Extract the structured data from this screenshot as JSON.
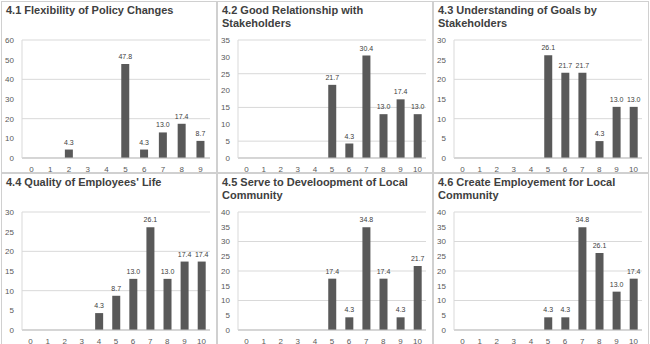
{
  "chart_data": [
    {
      "type": "bar",
      "title": "4.1 Flexibility of Policy Changes",
      "categories": [
        "0",
        "1",
        "2",
        "3",
        "4",
        "5",
        "6",
        "7",
        "8",
        "9"
      ],
      "values": [
        0,
        0,
        4.3,
        0,
        0,
        47.8,
        4.3,
        13.0,
        17.4,
        8.7
      ],
      "value_labels": [
        "0",
        "0",
        "4.3",
        "0",
        "0",
        "47.8",
        "4.3",
        "13.0",
        "17.4",
        "8.7"
      ],
      "color": "#595959",
      "ylim": [
        0,
        60
      ],
      "yticks": [
        0,
        10,
        20,
        30,
        40,
        50,
        60
      ],
      "grid": true,
      "data_labels": true
    },
    {
      "type": "bar",
      "title": "4.2 Good Relationship with Stakeholders",
      "categories": [
        "0",
        "1",
        "2",
        "3",
        "4",
        "5",
        "6",
        "7",
        "8",
        "9",
        "10"
      ],
      "values": [
        0,
        0,
        0,
        0,
        0,
        21.7,
        4.3,
        30.4,
        13.0,
        17.4,
        13.0
      ],
      "value_labels": [
        "0",
        "0",
        "0",
        "0",
        "0",
        "21.7",
        "4.3",
        "30.4",
        "13.0",
        "17.4",
        "13.0"
      ],
      "color": "#595959",
      "ylim": [
        0,
        35
      ],
      "yticks": [
        0,
        5,
        10,
        15,
        20,
        25,
        30,
        35
      ],
      "grid": true,
      "data_labels": true
    },
    {
      "type": "bar",
      "title": "4.3 Understanding of Goals by Stakeholders",
      "categories": [
        "0",
        "1",
        "2",
        "3",
        "4",
        "5",
        "6",
        "7",
        "8",
        "9",
        "10"
      ],
      "values": [
        0,
        0,
        0,
        0,
        0,
        26.1,
        21.7,
        21.7,
        4.3,
        13.0,
        13.0
      ],
      "value_labels": [
        "0",
        "0",
        "0",
        "0",
        "0",
        "26.1",
        "21.7",
        "21.7",
        "4.3",
        "13.0",
        "13.0"
      ],
      "color": "#595959",
      "ylim": [
        0,
        30
      ],
      "yticks": [
        0,
        5,
        10,
        15,
        20,
        25,
        30
      ],
      "grid": true,
      "data_labels": true
    },
    {
      "type": "bar",
      "title": "4.4 Quality of Employees' Life",
      "categories": [
        "0",
        "1",
        "2",
        "3",
        "4",
        "5",
        "6",
        "7",
        "8",
        "9",
        "10"
      ],
      "values": [
        0,
        0,
        0,
        0,
        4.3,
        8.7,
        13.0,
        26.1,
        13.0,
        17.4,
        17.4
      ],
      "value_labels": [
        "0",
        "0",
        "0",
        "0",
        "4.3",
        "8.7",
        "13.0",
        "26.1",
        "13.0",
        "17.4",
        "17.4"
      ],
      "color": "#595959",
      "ylim": [
        0,
        30
      ],
      "yticks": [
        0,
        5,
        10,
        15,
        20,
        25,
        30
      ],
      "grid": true,
      "data_labels": true
    },
    {
      "type": "bar",
      "title": "4.5 Serve to Develoopment of Local Community",
      "categories": [
        "0",
        "1",
        "2",
        "3",
        "4",
        "5",
        "6",
        "7",
        "8",
        "9",
        "10"
      ],
      "values": [
        0,
        0,
        0,
        0,
        0,
        17.4,
        4.3,
        34.8,
        17.4,
        4.3,
        21.7
      ],
      "value_labels": [
        "0",
        "0",
        "0",
        "0",
        "0",
        "17.4",
        "4.3",
        "34.8",
        "17.4",
        "4.3",
        "21.7"
      ],
      "color": "#595959",
      "ylim": [
        0,
        40
      ],
      "yticks": [
        0,
        5,
        10,
        15,
        20,
        25,
        30,
        35,
        40
      ],
      "grid": true,
      "data_labels": true
    },
    {
      "type": "bar",
      "title": "4.6 Create Employement for Local Community",
      "categories": [
        "0",
        "1",
        "2",
        "3",
        "4",
        "5",
        "6",
        "7",
        "8",
        "9",
        "10"
      ],
      "values": [
        0,
        0,
        0,
        0,
        0,
        4.3,
        4.3,
        34.8,
        26.1,
        13.0,
        17.4
      ],
      "value_labels": [
        "0",
        "0",
        "0",
        "0",
        "0",
        "4.3",
        "4.3",
        "34.8",
        "26.1",
        "13.0",
        "17.4"
      ],
      "color": "#595959",
      "ylim": [
        0,
        40
      ],
      "yticks": [
        0,
        5,
        10,
        15,
        20,
        25,
        30,
        35,
        40
      ],
      "grid": true,
      "data_labels": true
    }
  ]
}
